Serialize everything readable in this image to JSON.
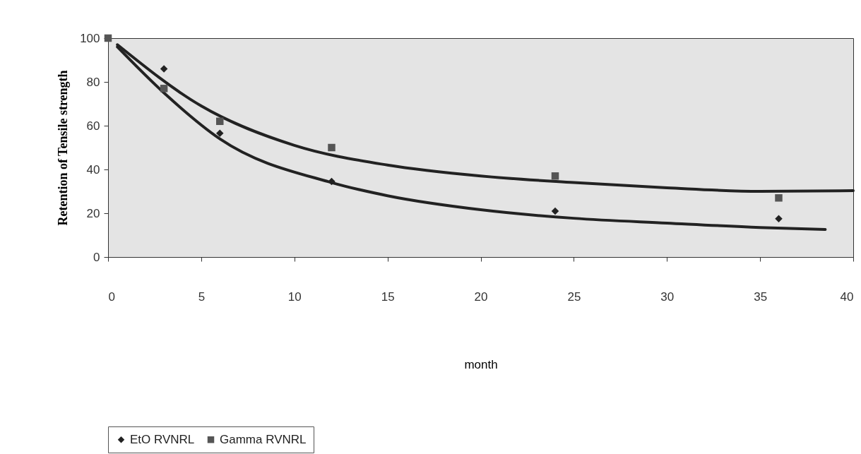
{
  "chart_data": {
    "type": "scatter",
    "xlabel": "month",
    "ylabel": "Retention of Tensile strength",
    "xlim": [
      0,
      40
    ],
    "xticks": [
      0,
      5,
      10,
      15,
      20,
      25,
      30,
      35,
      40
    ],
    "ylim": [
      0,
      100
    ],
    "yticks": [
      0,
      20,
      40,
      60,
      80,
      100
    ],
    "legend": "bottom",
    "series": [
      {
        "name": "EtO RVNRL",
        "type": "scatter",
        "marker": "diamond",
        "color": "#222222",
        "x": [
          3,
          6,
          12,
          24,
          36
        ],
        "values": [
          86,
          56.5,
          34.5,
          21,
          17.5
        ]
      },
      {
        "name": "Gamma RVNRL",
        "type": "scatter",
        "marker": "square",
        "color": "#555555",
        "x": [
          0,
          3,
          6,
          12,
          24,
          36
        ],
        "values": [
          100,
          77,
          62,
          50,
          37,
          27
        ]
      },
      {
        "type": "line",
        "marker": "none",
        "color": "#222222",
        "x": [
          0.5,
          3,
          6,
          12,
          15,
          20,
          25,
          30,
          35,
          38.5
        ],
        "values": [
          96,
          75,
          54,
          34,
          28,
          21.6,
          17.7,
          15.5,
          13.5,
          12.6
        ]
      },
      {
        "type": "line",
        "marker": "none",
        "color": "#222222",
        "x": [
          0.5,
          5,
          10,
          15,
          20,
          25,
          30,
          35,
          40
        ],
        "values": [
          97,
          69,
          51,
          42,
          37,
          34,
          31.6,
          30,
          30.3
        ]
      }
    ]
  }
}
